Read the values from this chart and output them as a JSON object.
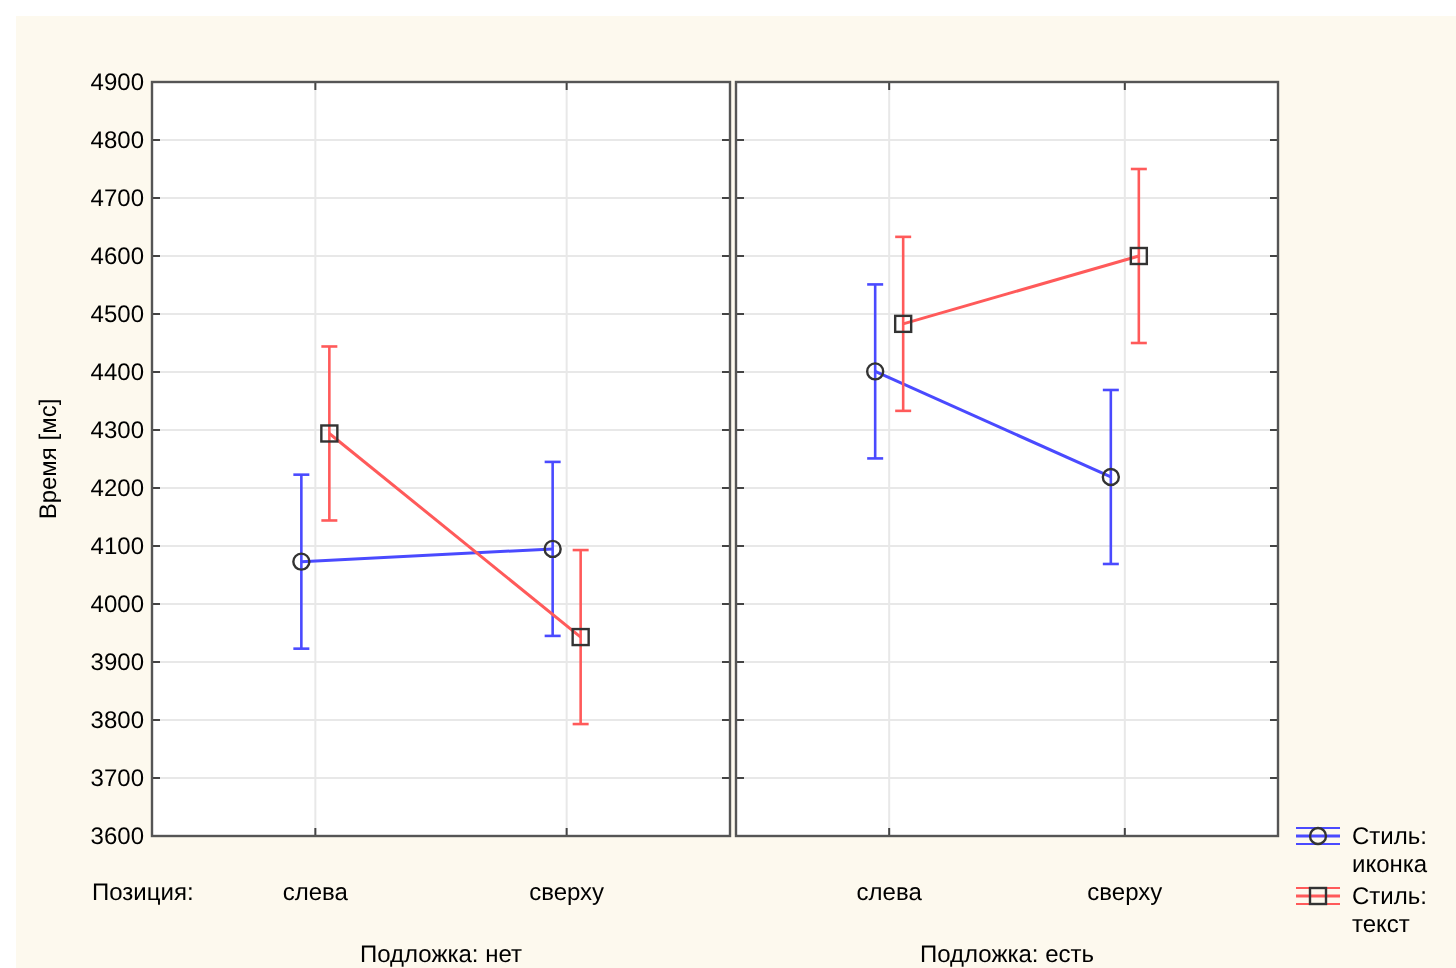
{
  "chart_data": [
    {
      "type": "line",
      "ylabel": "Время [мс]",
      "xlabel": "Позиция:",
      "title": "Подложка: нет",
      "categories": [
        "слева",
        "сверху"
      ],
      "ylim": [
        3600,
        4900
      ],
      "yticks": [
        3600,
        3700,
        3800,
        3900,
        4000,
        4100,
        4200,
        4300,
        4400,
        4500,
        4600,
        4700,
        4800,
        4900
      ],
      "grid": true,
      "series": [
        {
          "color": "#4a4aff",
          "marker": "circle",
          "values": [
            4073,
            4095
          ],
          "errors": [
            150,
            150
          ]
        },
        {
          "color": "#ff5a5a",
          "marker": "square",
          "values": [
            4294,
            3943
          ],
          "errors": [
            150,
            150
          ]
        }
      ]
    },
    {
      "type": "line",
      "title": "Подложка: есть",
      "categories": [
        "слева",
        "сверху"
      ],
      "ylim": [
        3600,
        4900
      ],
      "yticks": [
        3600,
        3700,
        3800,
        3900,
        4000,
        4100,
        4200,
        4300,
        4400,
        4500,
        4600,
        4700,
        4800,
        4900
      ],
      "grid": true,
      "tick_labels": "x",
      "legend": "bottom right",
      "series": [
        {
          "name": "Стиль: иконка",
          "color": "#4a4aff",
          "marker": "circle",
          "values": [
            4401,
            4219
          ],
          "errors": [
            150,
            150
          ]
        },
        {
          "name": "Стиль: текст",
          "color": "#ff5a5a",
          "marker": "square",
          "values": [
            4483,
            4600
          ],
          "errors": [
            150,
            150
          ]
        }
      ]
    }
  ]
}
